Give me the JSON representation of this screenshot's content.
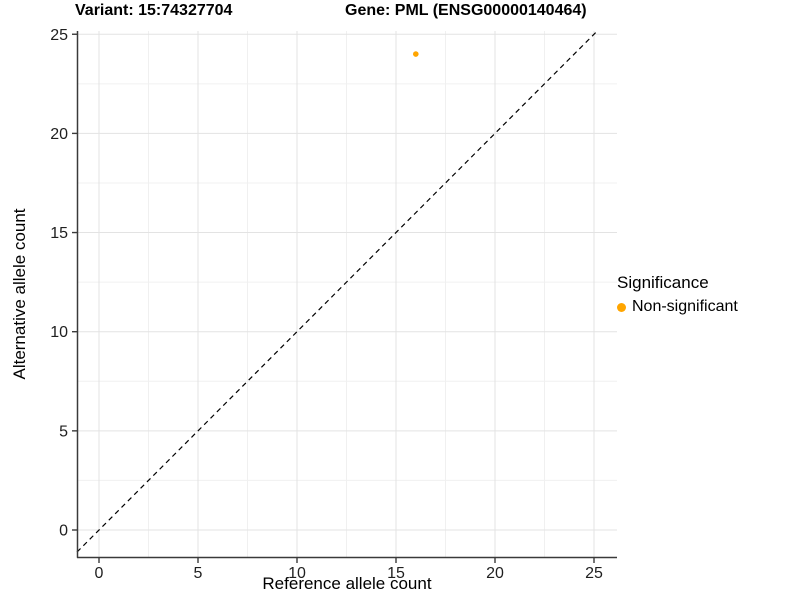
{
  "header": {
    "title_left": "Variant: 15:74327704",
    "title_right": "Gene: PML (ENSG00000140464)"
  },
  "colors": {
    "background": "#ffffff",
    "grid_major": "#e3e3e3",
    "grid_minor": "#f0f0f0",
    "axis_line": "#3a3a3a",
    "tick_text": "#1f1f1f",
    "point_orange": "#FFA500",
    "reference_line": "#000000"
  },
  "chart_data": {
    "type": "scatter",
    "title": "Variant: 15:74327704   Gene: PML (ENSG00000140464)",
    "xlabel": "Reference allele count",
    "ylabel": "Alternative allele count",
    "xlim": [
      0,
      25
    ],
    "ylim": [
      0,
      25
    ],
    "x_ticks": [
      0,
      5,
      10,
      15,
      20,
      25
    ],
    "y_ticks": [
      0,
      5,
      10,
      15,
      20,
      25
    ],
    "grid": {
      "major": true,
      "minor": true,
      "minor_interval": 2.5
    },
    "reference_line": {
      "kind": "identity",
      "equation": "y = x",
      "style": "dashed",
      "color": "#000000"
    },
    "series": [
      {
        "name": "Non-significant",
        "color": "#FFA500",
        "points": [
          [
            16,
            24
          ]
        ]
      }
    ],
    "legend": {
      "title": "Significance",
      "position": "right",
      "entries": [
        {
          "label": "Non-significant",
          "color": "#FFA500",
          "marker": "circle"
        }
      ]
    }
  }
}
